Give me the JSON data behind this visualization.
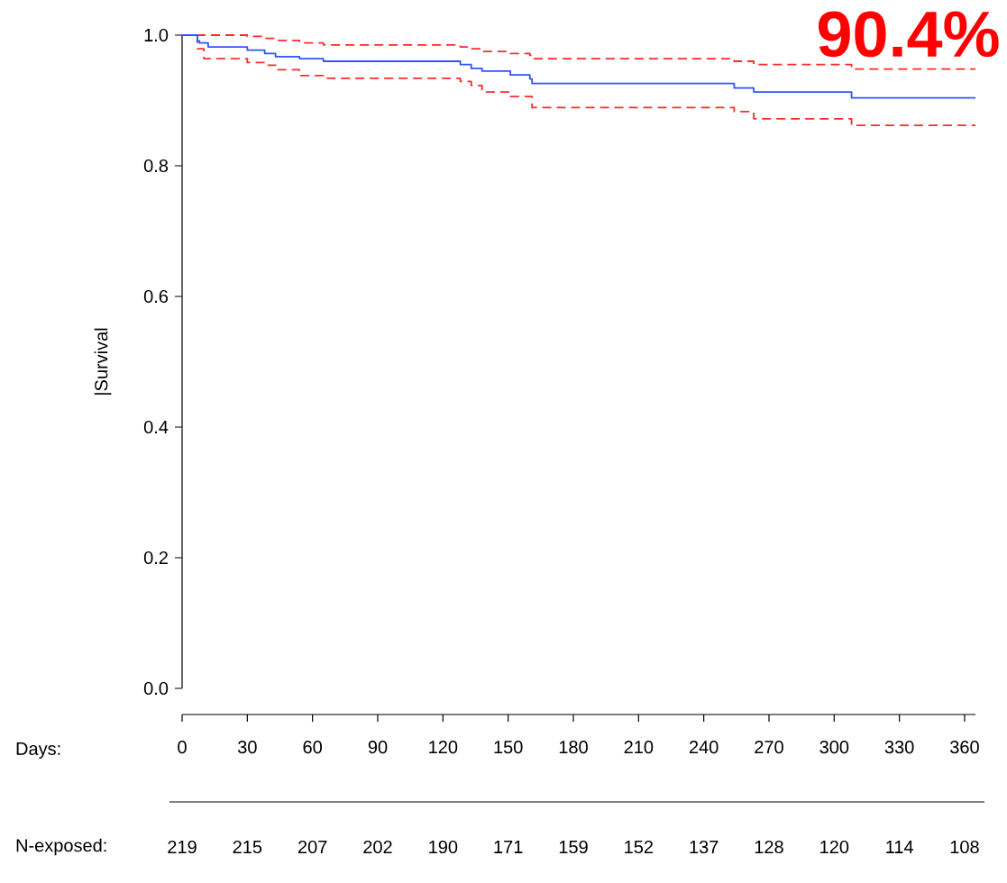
{
  "chart_data": {
    "type": "step",
    "xlabel": "Days:",
    "ylabel": "|Survival",
    "xlim": [
      0,
      365
    ],
    "xticks": [
      0,
      30,
      60,
      90,
      120,
      150,
      180,
      210,
      240,
      270,
      300,
      330,
      360
    ],
    "ylim": [
      0,
      1
    ],
    "yticks": [
      {
        "value": 0,
        "label": "0.0"
      },
      {
        "value": 0.2,
        "label": "0.2"
      },
      {
        "value": 0.4,
        "label": "0.4"
      },
      {
        "value": 0.6,
        "label": "0.6"
      },
      {
        "value": 0.8,
        "label": "0.8"
      },
      {
        "value": 1,
        "label": "1.0"
      }
    ],
    "grid": false,
    "marker": "none",
    "series": [
      {
        "color": "#2f54ff",
        "line_style": "solid",
        "x": [
          0,
          7,
          8,
          12,
          30,
          38,
          43,
          54,
          65,
          128,
          133,
          138,
          151,
          160,
          161,
          254,
          263,
          308,
          365
        ],
        "values": [
          1,
          0.991,
          0.988,
          0.982,
          0.977,
          0.972,
          0.967,
          0.964,
          0.96,
          0.955,
          0.949,
          0.945,
          0.939,
          0.933,
          0.926,
          0.919,
          0.913,
          0.904,
          0.904
        ]
      },
      {
        "color": "#ff2a2a",
        "line_style": "dashed",
        "x": [
          0,
          30,
          38,
          43,
          54,
          65,
          128,
          133,
          138,
          151,
          160,
          161,
          254,
          263,
          308,
          365
        ],
        "values": [
          1,
          0.998,
          0.995,
          0.992,
          0.988,
          0.985,
          0.982,
          0.979,
          0.975,
          0.972,
          0.969,
          0.964,
          0.96,
          0.955,
          0.948,
          0.948
        ]
      },
      {
        "color": "#ff2a2a",
        "line_style": "dashed",
        "x": [
          0,
          7,
          10,
          30,
          38,
          43,
          54,
          65,
          128,
          133,
          138,
          151,
          161,
          254,
          263,
          308,
          365
        ],
        "values": [
          1,
          0.979,
          0.964,
          0.958,
          0.954,
          0.947,
          0.938,
          0.934,
          0.929,
          0.923,
          0.913,
          0.906,
          0.889,
          0.883,
          0.872,
          0.862,
          0.862
        ]
      }
    ],
    "annotations": [
      "90.4%",
      "N-exposed:",
      "219",
      "215",
      "207",
      "202",
      "190",
      "171",
      "159",
      "152",
      "137",
      "128",
      "120",
      "114",
      "108"
    ]
  }
}
